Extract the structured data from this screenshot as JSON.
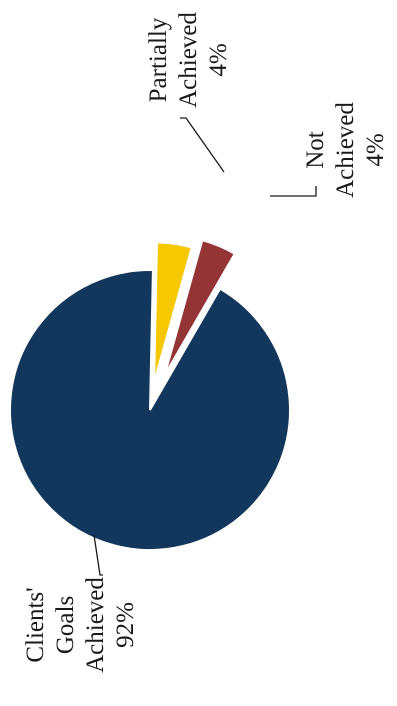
{
  "chart_data": {
    "type": "pie",
    "orientation": "rotated-90-ccw",
    "slices": [
      {
        "label_lines": [
          "Clients'",
          "Goals",
          "Achieved"
        ],
        "value": 92,
        "value_label": "92%",
        "color": "#13365c"
      },
      {
        "label_lines": [
          "Partially",
          "Achieved"
        ],
        "value": 4,
        "value_label": "4%",
        "color": "#f5c800"
      },
      {
        "label_lines": [
          "Not",
          "Achieved"
        ],
        "value": 4,
        "value_label": "4%",
        "color": "#953434"
      }
    ],
    "exploded": true,
    "legend": "none"
  }
}
